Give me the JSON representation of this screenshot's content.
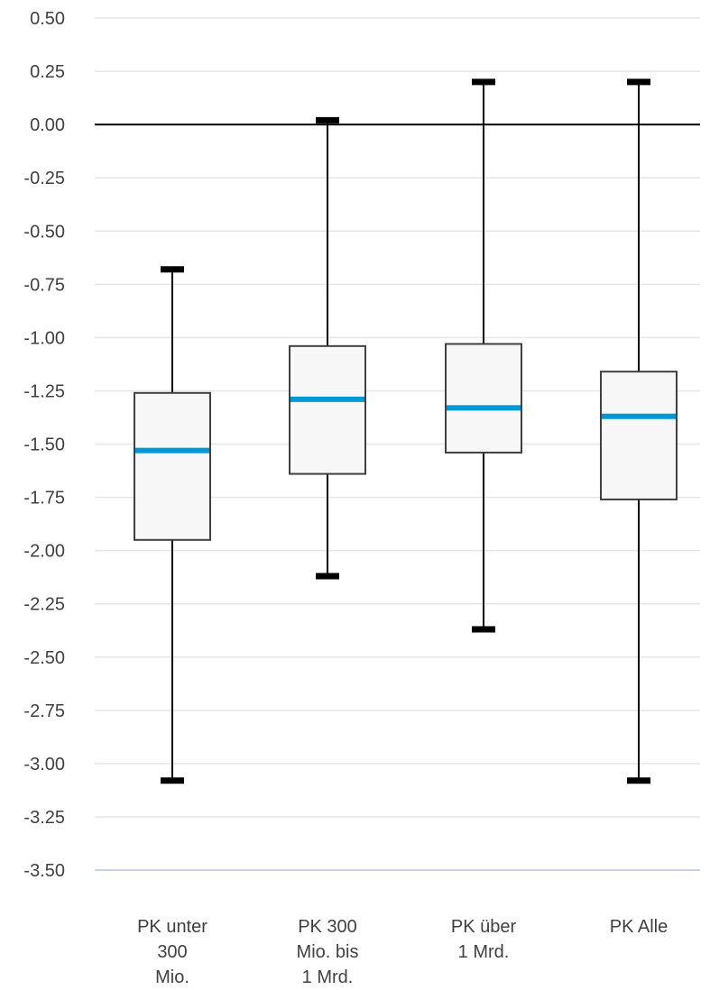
{
  "chart_data": {
    "type": "box",
    "title": "",
    "xlabel": "",
    "ylabel": "",
    "ylim": [
      -3.5,
      0.5
    ],
    "yticks": [
      "0.50",
      "0.25",
      "0.00",
      "-0.25",
      "-0.50",
      "-0.75",
      "-1.00",
      "-1.25",
      "-1.50",
      "-1.75",
      "-2.00",
      "-2.25",
      "-2.50",
      "-2.75",
      "-3.00",
      "-3.25",
      "-3.50"
    ],
    "grid": true,
    "categories": [
      {
        "lines": [
          "PK unter",
          "300",
          "Mio."
        ]
      },
      {
        "lines": [
          "PK 300",
          "Mio. bis",
          "1 Mrd."
        ]
      },
      {
        "lines": [
          "PK über",
          "1 Mrd."
        ]
      },
      {
        "lines": [
          "PK Alle"
        ]
      }
    ],
    "boxes": [
      {
        "min": -3.08,
        "q1": -1.95,
        "median": -1.53,
        "q3": -1.26,
        "max": -0.68
      },
      {
        "min": -2.12,
        "q1": -1.64,
        "median": -1.29,
        "q3": -1.04,
        "max": 0.02
      },
      {
        "min": -2.37,
        "q1": -1.54,
        "median": -1.33,
        "q3": -1.03,
        "max": 0.2
      },
      {
        "min": -3.08,
        "q1": -1.76,
        "median": -1.37,
        "q3": -1.16,
        "max": 0.2
      }
    ],
    "colors": {
      "median": "#0099d6",
      "box_fill": "#f7f7f7",
      "box_stroke": "#404040",
      "whisker": "#000000",
      "grid": "#e6e6e6",
      "axis": "#c6d3ea",
      "zero_line": "#000000"
    }
  }
}
